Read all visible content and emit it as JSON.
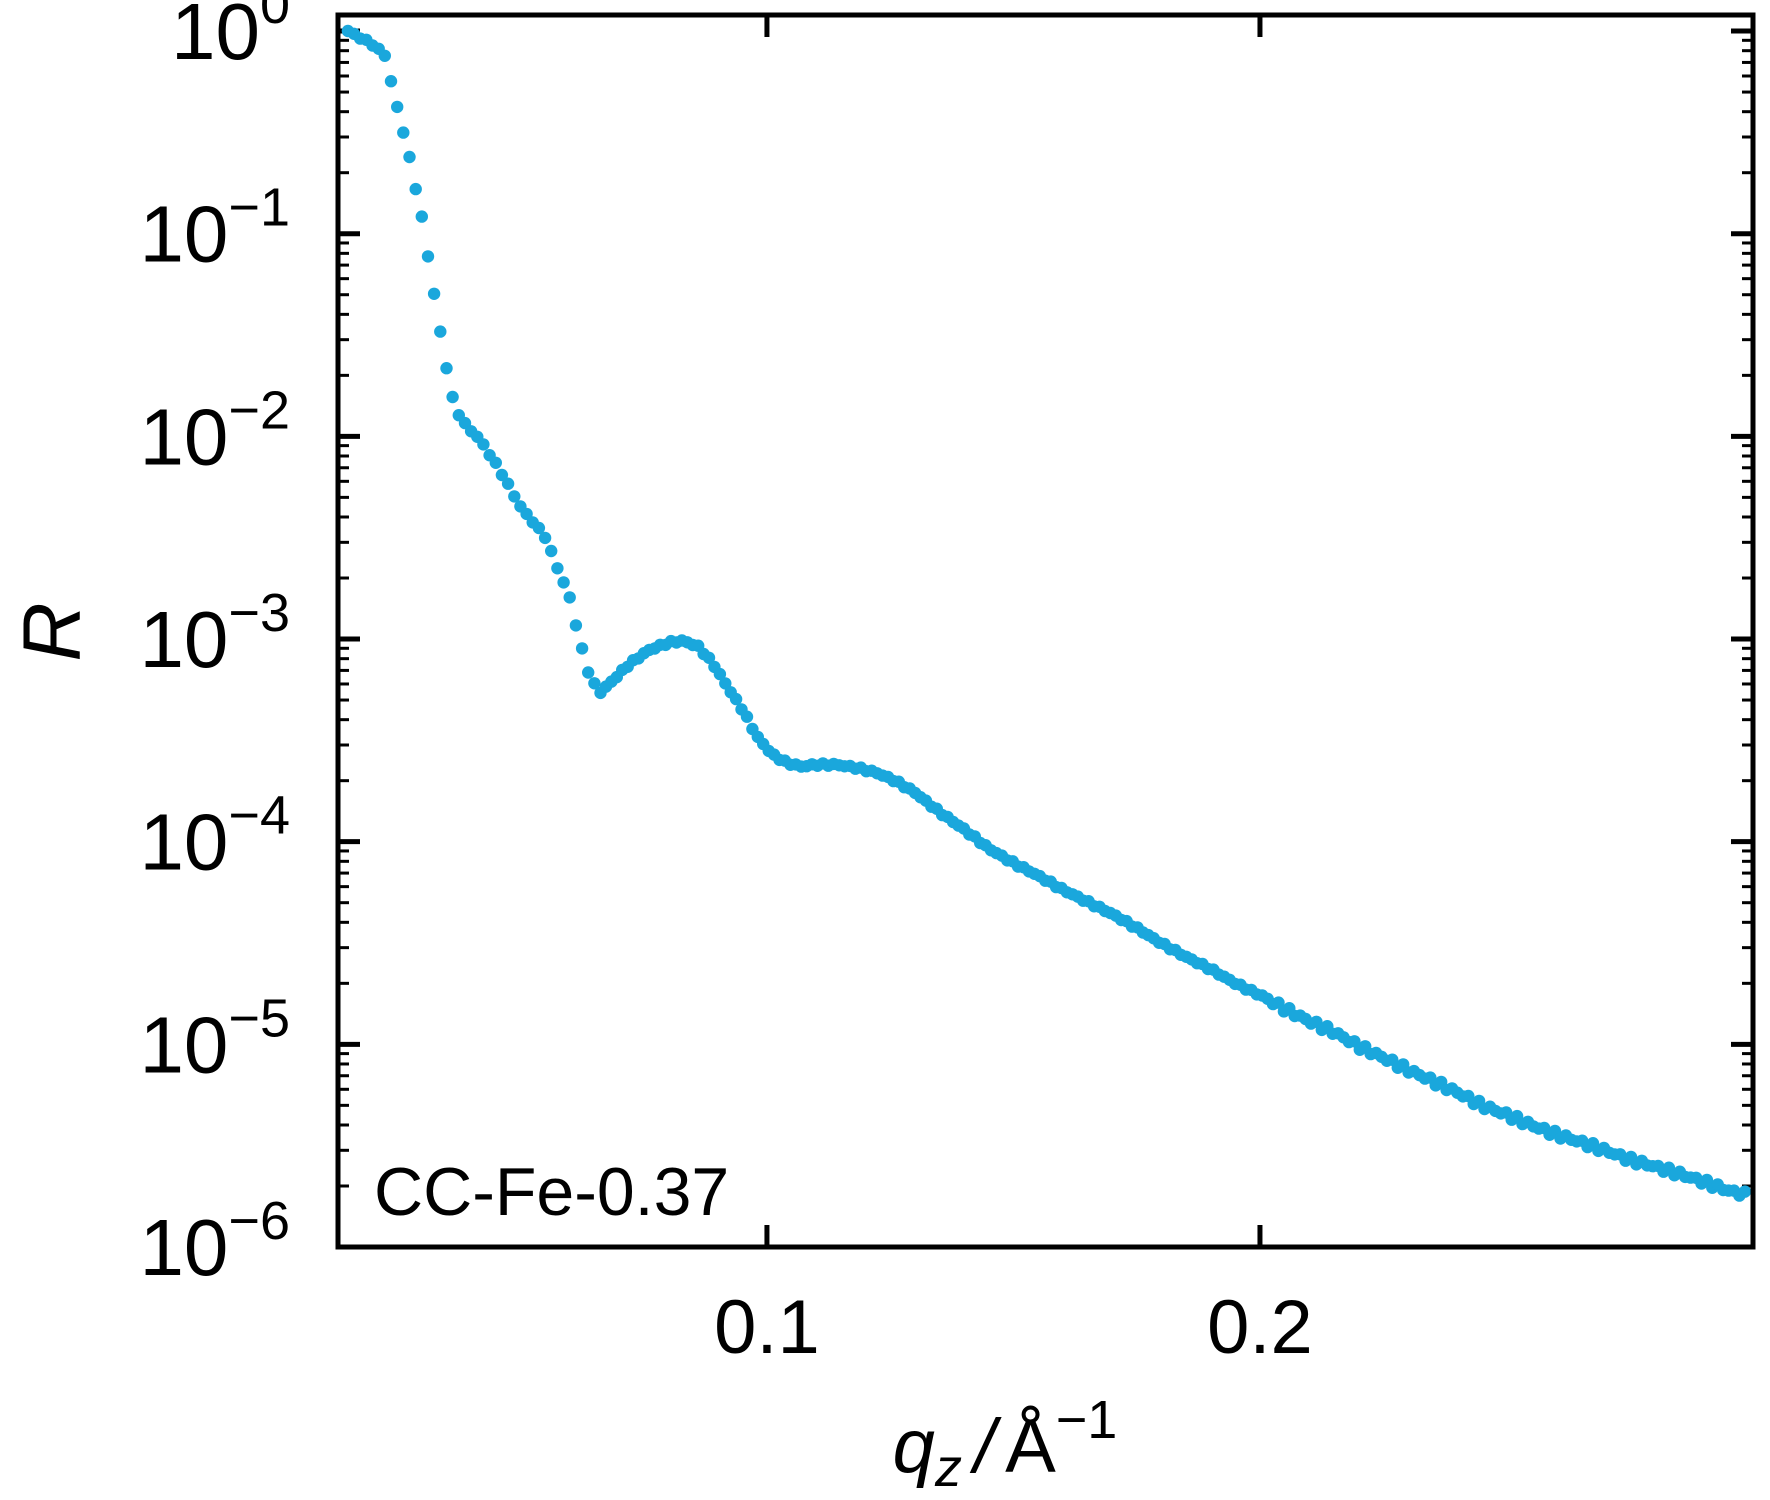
{
  "chart_data": {
    "type": "scatter",
    "xlabel": {
      "var": "q",
      "sub": "z",
      "sep": "/",
      "unit": "Å",
      "exp": "−1"
    },
    "ylabel": "R",
    "annotation": "CC-Fe-0.37",
    "xlim": [
      0.013,
      0.3
    ],
    "ylim": [
      1e-06,
      1.2
    ],
    "yscale": "log",
    "x_ticks": [
      {
        "value": 0.1,
        "label": "0.1"
      },
      {
        "value": 0.2,
        "label": "0.2"
      }
    ],
    "y_ticks": [
      {
        "value": 1,
        "base": "10",
        "exp": "0"
      },
      {
        "value": 0.1,
        "base": "10",
        "exp": "−1"
      },
      {
        "value": 0.01,
        "base": "10",
        "exp": "−2"
      },
      {
        "value": 0.001,
        "base": "10",
        "exp": "−3"
      },
      {
        "value": 0.0001,
        "base": "10",
        "exp": "−4"
      },
      {
        "value": 1e-05,
        "base": "10",
        "exp": "−5"
      },
      {
        "value": 1e-06,
        "base": "10",
        "exp": "−6"
      }
    ],
    "marker_color": "#1aa7dc",
    "anchors": [
      [
        0.015,
        1.0
      ],
      [
        0.02,
        0.86
      ],
      [
        0.0225,
        0.76
      ],
      [
        0.025,
        0.42
      ],
      [
        0.027,
        0.27
      ],
      [
        0.03,
        0.12
      ],
      [
        0.032,
        0.06
      ],
      [
        0.034,
        0.03
      ],
      [
        0.036,
        0.016
      ],
      [
        0.038,
        0.012
      ],
      [
        0.042,
        0.0095
      ],
      [
        0.046,
        0.0067
      ],
      [
        0.05,
        0.0045
      ],
      [
        0.055,
        0.0032
      ],
      [
        0.058,
        0.0021
      ],
      [
        0.06,
        0.0016
      ],
      [
        0.062,
        0.00098
      ],
      [
        0.064,
        0.00066
      ],
      [
        0.066,
        0.00054
      ],
      [
        0.068,
        0.0006
      ],
      [
        0.072,
        0.00075
      ],
      [
        0.076,
        0.00088
      ],
      [
        0.08,
        0.00096
      ],
      [
        0.083,
        0.00098
      ],
      [
        0.086,
        0.00092
      ],
      [
        0.089,
        0.00076
      ],
      [
        0.092,
        0.00058
      ],
      [
        0.095,
        0.00045
      ],
      [
        0.098,
        0.00033
      ],
      [
        0.101,
        0.00027
      ],
      [
        0.104,
        0.000245
      ],
      [
        0.107,
        0.000235
      ],
      [
        0.11,
        0.00024
      ],
      [
        0.114,
        0.00024
      ],
      [
        0.118,
        0.000232
      ],
      [
        0.122,
        0.00022
      ],
      [
        0.126,
        0.0002
      ],
      [
        0.13,
        0.000175
      ],
      [
        0.135,
        0.00014
      ],
      [
        0.14,
        0.000115
      ],
      [
        0.145,
        9.25e-05
      ],
      [
        0.15,
        7.85e-05
      ],
      [
        0.155,
        6.8e-05
      ],
      [
        0.16,
        5.8e-05
      ],
      [
        0.165,
        5.05e-05
      ],
      [
        0.17,
        4.4e-05
      ],
      [
        0.175,
        3.75e-05
      ],
      [
        0.18,
        3.15e-05
      ],
      [
        0.185,
        2.7e-05
      ],
      [
        0.19,
        2.35e-05
      ],
      [
        0.195,
        2e-05
      ],
      [
        0.2,
        1.75e-05
      ],
      [
        0.205,
        1.5e-05
      ],
      [
        0.21,
        1.3e-05
      ],
      [
        0.215,
        1.15e-05
      ],
      [
        0.22,
        9.8e-06
      ],
      [
        0.225,
        8.6e-06
      ],
      [
        0.23,
        7.5e-06
      ],
      [
        0.235,
        6.6e-06
      ],
      [
        0.24,
        5.8e-06
      ],
      [
        0.245,
        5e-06
      ],
      [
        0.25,
        4.5e-06
      ],
      [
        0.255,
        4e-06
      ],
      [
        0.26,
        3.6e-06
      ],
      [
        0.265,
        3.3e-06
      ],
      [
        0.27,
        3e-06
      ],
      [
        0.275,
        2.7e-06
      ],
      [
        0.28,
        2.5e-06
      ],
      [
        0.285,
        2.3e-06
      ],
      [
        0.29,
        2.1e-06
      ],
      [
        0.295,
        1.9e-06
      ],
      [
        0.299,
        1.8e-06
      ]
    ]
  }
}
